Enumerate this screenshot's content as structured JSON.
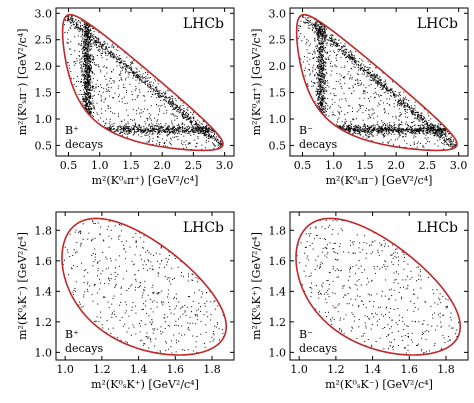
{
  "chart_data": [
    {
      "type": "scatter",
      "panel": "top-left",
      "xlabel": "m²(K⁰ₛπ⁺) [GeV²/c⁴]",
      "ylabel": "m²(K⁰ₛπ⁻) [GeV²/c⁴]",
      "xlim": [
        0.3,
        3.15
      ],
      "ylim": [
        0.3,
        3.1
      ],
      "xticks": [
        "0.5",
        "1.0",
        "1.5",
        "2.0",
        "2.5",
        "3.0"
      ],
      "xtick_values": [
        0.5,
        1.0,
        1.5,
        2.0,
        2.5,
        3.0
      ],
      "yticks": [
        "0.5",
        "1.0",
        "1.5",
        "2.0",
        "2.5",
        "3.0"
      ],
      "ytick_values": [
        0.5,
        1.0,
        1.5,
        2.0,
        2.5,
        3.0
      ],
      "experiment_label": "LHCb",
      "decay_label_line1": "B⁺",
      "decay_label_line2": "decays",
      "boundary": "Dalitz kinematic boundary (red curve)",
      "dot_color": "#000000",
      "boundary_color": "#c0282a"
    },
    {
      "type": "scatter",
      "panel": "top-right",
      "xlabel": "m²(K⁰ₛπ⁻) [GeV²/c⁴]",
      "ylabel": "m²(K⁰ₛπ⁺) [GeV²/c⁴]",
      "xlim": [
        0.3,
        3.15
      ],
      "ylim": [
        0.3,
        3.1
      ],
      "xticks": [
        "0.5",
        "1.0",
        "1.5",
        "2.0",
        "2.5",
        "3.0"
      ],
      "xtick_values": [
        0.5,
        1.0,
        1.5,
        2.0,
        2.5,
        3.0
      ],
      "yticks": [
        "0.5",
        "1.0",
        "1.5",
        "2.0",
        "2.5",
        "3.0"
      ],
      "ytick_values": [
        0.5,
        1.0,
        1.5,
        2.0,
        2.5,
        3.0
      ],
      "experiment_label": "LHCb",
      "decay_label_line1": "B⁻",
      "decay_label_line2": "decays",
      "dot_color": "#000000",
      "boundary_color": "#c0282a"
    },
    {
      "type": "scatter",
      "panel": "bottom-left",
      "xlabel": "m²(K⁰ₛK⁺) [GeV²/c⁴]",
      "ylabel": "m²(K⁰ₛK⁻) [GeV²/c⁴]",
      "xlim": [
        0.95,
        1.92
      ],
      "ylim": [
        0.95,
        1.92
      ],
      "xticks": [
        "1.0",
        "1.2",
        "1.4",
        "1.6",
        "1.8"
      ],
      "xtick_values": [
        1.0,
        1.2,
        1.4,
        1.6,
        1.8
      ],
      "yticks": [
        "1.0",
        "1.2",
        "1.4",
        "1.6",
        "1.8"
      ],
      "ytick_values": [
        1.0,
        1.2,
        1.4,
        1.6,
        1.8
      ],
      "experiment_label": "LHCb",
      "decay_label_line1": "B⁺",
      "decay_label_line2": "decays",
      "dot_color": "#000000",
      "boundary_color": "#c0282a"
    },
    {
      "type": "scatter",
      "panel": "bottom-right",
      "xlabel": "m²(K⁰ₛK⁻) [GeV²/c⁴]",
      "ylabel": "m²(K⁰ₛK⁺) [GeV²/c⁴]",
      "xlim": [
        0.95,
        1.92
      ],
      "ylim": [
        0.95,
        1.92
      ],
      "xticks": [
        "1.0",
        "1.2",
        "1.4",
        "1.6",
        "1.8"
      ],
      "xtick_values": [
        1.0,
        1.2,
        1.4,
        1.6,
        1.8
      ],
      "yticks": [
        "1.0",
        "1.2",
        "1.4",
        "1.6",
        "1.8"
      ],
      "ytick_values": [
        1.0,
        1.2,
        1.4,
        1.6,
        1.8
      ],
      "experiment_label": "LHCb",
      "decay_label_line1": "B⁻",
      "decay_label_line2": "decays",
      "dot_color": "#000000",
      "boundary_color": "#c0282a"
    }
  ]
}
